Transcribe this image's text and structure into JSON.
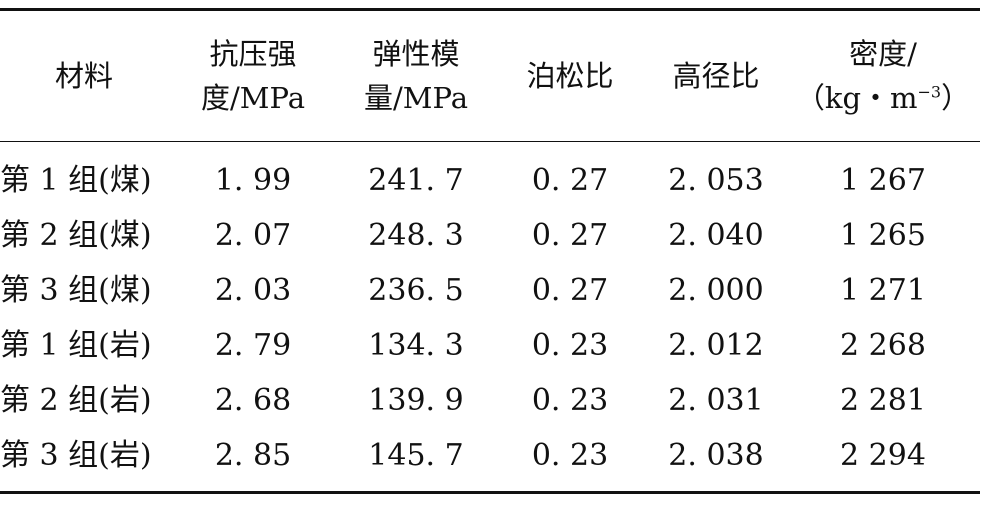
{
  "table": {
    "headers": [
      {
        "line1": "材料",
        "line2": ""
      },
      {
        "line1": "抗压强",
        "line2": "度/MPa"
      },
      {
        "line1": "弹性模",
        "line2": "量/MPa"
      },
      {
        "line1": "泊松比",
        "line2": ""
      },
      {
        "line1": "高径比",
        "line2": ""
      },
      {
        "line1": "密度/",
        "line2_pre": "（kg・m",
        "line2_sup": "−3",
        "line2_post": "）"
      }
    ],
    "rows": [
      {
        "material": "第 1 组(煤)",
        "compressive_strength": "1. 99",
        "elastic_modulus": "241. 7",
        "poisson_ratio": "0. 27",
        "aspect_ratio": "2. 053",
        "density": "1 267"
      },
      {
        "material": "第 2 组(煤)",
        "compressive_strength": "2. 07",
        "elastic_modulus": "248. 3",
        "poisson_ratio": "0. 27",
        "aspect_ratio": "2. 040",
        "density": "1 265"
      },
      {
        "material": "第 3 组(煤)",
        "compressive_strength": "2. 03",
        "elastic_modulus": "236. 5",
        "poisson_ratio": "0. 27",
        "aspect_ratio": "2. 000",
        "density": "1 271"
      },
      {
        "material": "第 1 组(岩)",
        "compressive_strength": "2. 79",
        "elastic_modulus": "134. 3",
        "poisson_ratio": "0. 23",
        "aspect_ratio": "2. 012",
        "density": "2 268"
      },
      {
        "material": "第 2 组(岩)",
        "compressive_strength": "2. 68",
        "elastic_modulus": "139. 9",
        "poisson_ratio": "0. 23",
        "aspect_ratio": "2. 031",
        "density": "2 281"
      },
      {
        "material": "第 3 组(岩)",
        "compressive_strength": "2. 85",
        "elastic_modulus": "145. 7",
        "poisson_ratio": "0. 23",
        "aspect_ratio": "2. 038",
        "density": "2 294"
      }
    ]
  }
}
